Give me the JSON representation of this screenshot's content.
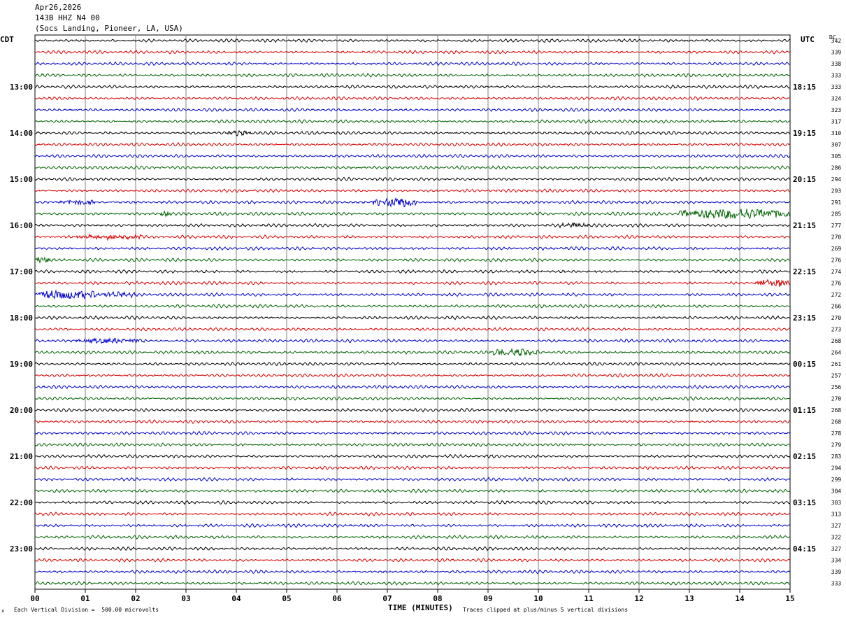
{
  "header": {
    "date": "Apr26,2026",
    "station": "143B HHZ N4 00",
    "location": "(Socs Landing, Pioneer, LA, USA)"
  },
  "axes": {
    "left_timezone": "CDT",
    "right_timezone": "UTC",
    "dc_label": "DC"
  },
  "footer": {
    "scale_note": "Each Vertical Division =  500.00 microvolts",
    "clip_note": "Traces clipped at plus/minus 5 vertical divisions",
    "corner_mark": "x"
  },
  "colors": {
    "trace_cycle": [
      "#000000",
      "#dd0000",
      "#0000cc",
      "#006400"
    ],
    "grid": "#808080"
  },
  "chart_data": {
    "type": "line",
    "subtype": "helicorder",
    "xlabel": "TIME (MINUTES)",
    "x_ticks": [
      "00",
      "01",
      "02",
      "03",
      "04",
      "05",
      "06",
      "07",
      "08",
      "09",
      "10",
      "11",
      "12",
      "13",
      "14",
      "15"
    ],
    "x_range": [
      0,
      15
    ],
    "left_hour_labels": [
      "13:00",
      "14:00",
      "15:00",
      "16:00",
      "17:00",
      "18:00",
      "19:00",
      "20:00",
      "21:00",
      "22:00",
      "23:00"
    ],
    "right_hour_labels": [
      "18:15",
      "19:15",
      "20:15",
      "21:15",
      "22:15",
      "23:15",
      "00:15",
      "01:15",
      "02:15",
      "03:15",
      "04:15"
    ],
    "label_every_n_traces": 4,
    "label_offset_traces": 4,
    "minutes_per_trace": 15,
    "dc_offsets": [
      342,
      339,
      338,
      333,
      333,
      324,
      323,
      317,
      310,
      307,
      305,
      286,
      294,
      293,
      291,
      285,
      277,
      270,
      269,
      276,
      274,
      276,
      272,
      266,
      270,
      273,
      268,
      264,
      261,
      257,
      256,
      270,
      268,
      268,
      278,
      279,
      283,
      294,
      299,
      304,
      303,
      313,
      327,
      322,
      327,
      334,
      339,
      333
    ],
    "events": [
      {
        "trace": 8,
        "start_min": 3.8,
        "end_min": 4.3,
        "amp": 3
      },
      {
        "trace": 14,
        "start_min": 6.7,
        "end_min": 7.6,
        "amp": 6
      },
      {
        "trace": 14,
        "start_min": 0.5,
        "end_min": 1.2,
        "amp": 3
      },
      {
        "trace": 15,
        "start_min": 12.8,
        "end_min": 15.0,
        "amp": 7
      },
      {
        "trace": 15,
        "start_min": 2.5,
        "end_min": 2.7,
        "amp": 4
      },
      {
        "trace": 16,
        "start_min": 10.4,
        "end_min": 11.0,
        "amp": 3
      },
      {
        "trace": 17,
        "start_min": 0.8,
        "end_min": 2.2,
        "amp": 3
      },
      {
        "trace": 19,
        "start_min": 0.0,
        "end_min": 0.3,
        "amp": 4
      },
      {
        "trace": 21,
        "start_min": 14.3,
        "end_min": 15.0,
        "amp": 5
      },
      {
        "trace": 22,
        "start_min": 0.0,
        "end_min": 1.2,
        "amp": 6
      },
      {
        "trace": 22,
        "start_min": 1.2,
        "end_min": 2.0,
        "amp": 3
      },
      {
        "trace": 26,
        "start_min": 0.8,
        "end_min": 2.2,
        "amp": 3
      },
      {
        "trace": 27,
        "start_min": 9.0,
        "end_min": 10.0,
        "amp": 4
      }
    ]
  }
}
